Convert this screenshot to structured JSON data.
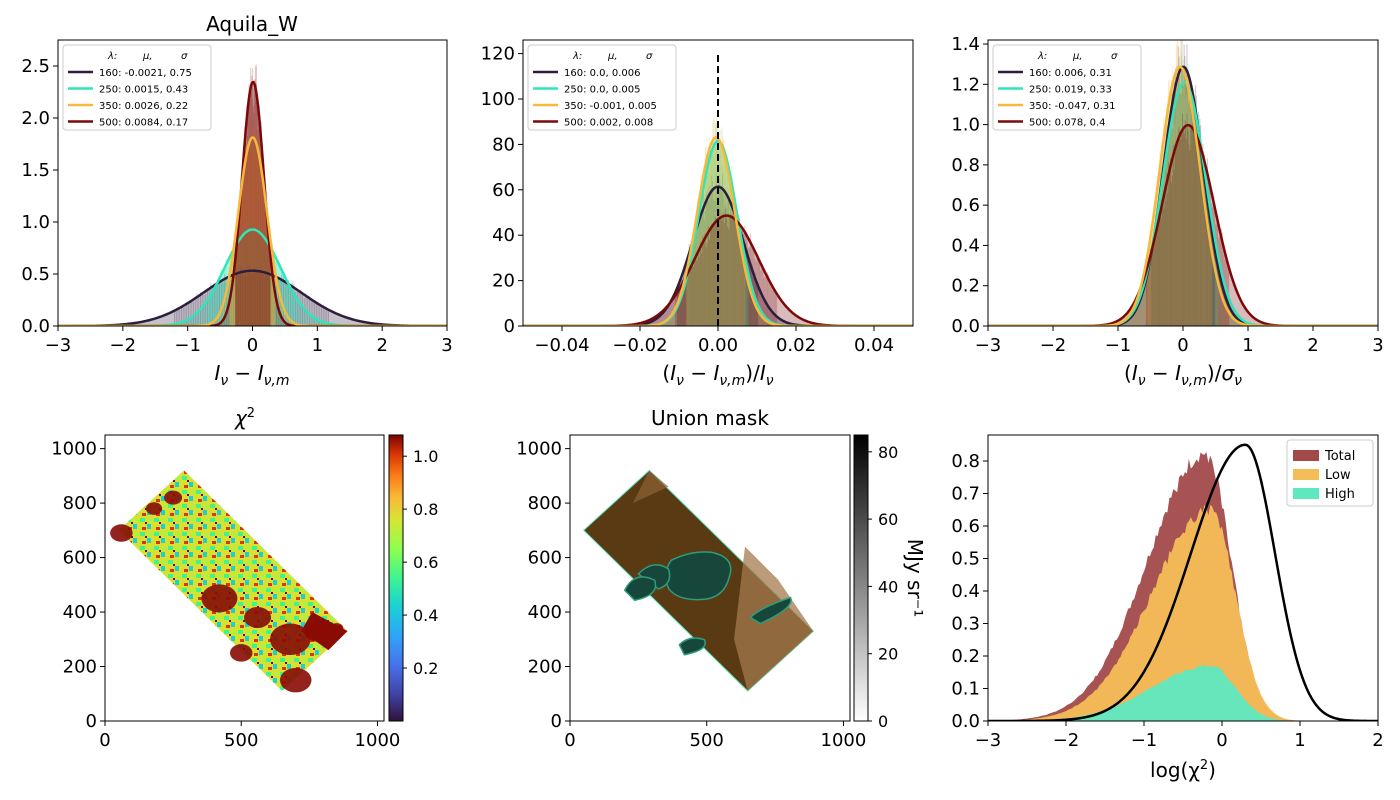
{
  "chart_data": [
    {
      "type": "line",
      "title": "Aquila_W",
      "xlabel": "I_ν − I_ν,m",
      "xlim": [
        -3,
        3
      ],
      "ylim": [
        0,
        2.75
      ],
      "xticks": [
        "−3",
        "−2",
        "−1",
        "0",
        "1",
        "2",
        "3"
      ],
      "yticks": [
        "0.0",
        "0.5",
        "1.0",
        "1.5",
        "2.0",
        "2.5"
      ],
      "legend": {
        "placement": "upper-left",
        "header": [
          "λ:",
          "μ,",
          "σ"
        ],
        "entries": [
          "160: -0.0021,  0.75",
          "250: 0.0015,  0.43",
          "350: 0.0026,  0.22",
          "500: 0.0084,  0.17"
        ]
      },
      "series": [
        {
          "band": 160,
          "mu": -0.0021,
          "sigma": 0.75,
          "color": "#2d1e3e"
        },
        {
          "band": 250,
          "mu": 0.0015,
          "sigma": 0.43,
          "color": "#2ee6b9"
        },
        {
          "band": 350,
          "mu": 0.0026,
          "sigma": 0.22,
          "color": "#f6b93b"
        },
        {
          "band": 500,
          "mu": 0.0084,
          "sigma": 0.17,
          "color": "#7a0a0a"
        }
      ]
    },
    {
      "type": "line",
      "title": "",
      "xlabel": "(I_ν − I_ν,m)/I_ν",
      "xlim": [
        -0.05,
        0.05
      ],
      "ylim": [
        0,
        126
      ],
      "xticks": [
        "−0.04",
        "−0.02",
        "0.00",
        "0.02",
        "0.04"
      ],
      "yticks": [
        "0",
        "20",
        "40",
        "60",
        "80",
        "100",
        "120"
      ],
      "vline": 0,
      "legend": {
        "placement": "upper-left",
        "header": [
          "λ:",
          "μ,",
          "σ"
        ],
        "entries": [
          "160: 0.0,  0.006",
          "250: 0.0,  0.005",
          "350: -0.001,  0.005",
          "500: 0.002,  0.008"
        ]
      },
      "series": [
        {
          "band": 160,
          "mu": 0.0,
          "sigma": 0.0065,
          "color": "#2d1e3e"
        },
        {
          "band": 250,
          "mu": 0.0,
          "sigma": 0.0049,
          "color": "#2ee6b9"
        },
        {
          "band": 350,
          "mu": -0.0005,
          "sigma": 0.0048,
          "color": "#f6b93b"
        },
        {
          "band": 500,
          "mu": 0.0022,
          "sigma": 0.0082,
          "color": "#7a0a0a"
        }
      ]
    },
    {
      "type": "line",
      "title": "",
      "xlabel": "(I_ν − I_ν,m)/σ_ν",
      "xlim": [
        -3,
        3
      ],
      "ylim": [
        0,
        1.42
      ],
      "xticks": [
        "−3",
        "−2",
        "−1",
        "0",
        "1",
        "2",
        "3"
      ],
      "yticks": [
        "0.0",
        "0.2",
        "0.4",
        "0.6",
        "0.8",
        "1.0",
        "1.2",
        "1.4"
      ],
      "legend": {
        "placement": "upper-left",
        "header": [
          "λ:",
          "μ,",
          "σ"
        ],
        "entries": [
          "160: 0.006,  0.31",
          "250: 0.019,  0.33",
          "350: -0.047,  0.31",
          "500: 0.078,  0.4"
        ]
      },
      "series": [
        {
          "band": 160,
          "mu": 0.006,
          "sigma": 0.31,
          "color": "#2d1e3e"
        },
        {
          "band": 250,
          "mu": 0.019,
          "sigma": 0.33,
          "color": "#2ee6b9"
        },
        {
          "band": 350,
          "mu": -0.047,
          "sigma": 0.31,
          "color": "#f6b93b"
        },
        {
          "band": 500,
          "mu": 0.078,
          "sigma": 0.4,
          "color": "#7a0a0a"
        }
      ]
    },
    {
      "type": "heatmap",
      "title": "χ²",
      "xlim": [
        0,
        1024
      ],
      "ylim": [
        0,
        1050
      ],
      "xticks": [
        "0",
        "500",
        "1000"
      ],
      "yticks": [
        "0",
        "200",
        "400",
        "600",
        "800",
        "1000"
      ],
      "colorbar": {
        "range": [
          0.0,
          1.08
        ],
        "ticks": [
          "0.2",
          "0.4",
          "0.6",
          "0.8",
          "1.0"
        ]
      },
      "field_corners": [
        [
          50,
          700
        ],
        [
          290,
          920
        ],
        [
          890,
          330
        ],
        [
          650,
          110
        ]
      ]
    },
    {
      "type": "heatmap",
      "title": "Union mask",
      "xlim": [
        0,
        1024
      ],
      "ylim": [
        0,
        1050
      ],
      "xticks": [
        "0",
        "500",
        "1000"
      ],
      "yticks": [
        "0",
        "200",
        "400",
        "600",
        "800",
        "1000"
      ],
      "colorbar": {
        "range": [
          0,
          85
        ],
        "ticks": [
          "0",
          "20",
          "40",
          "60",
          "80"
        ],
        "label": "MJy sr⁻¹"
      },
      "field_corners": [
        [
          50,
          700
        ],
        [
          290,
          920
        ],
        [
          890,
          330
        ],
        [
          650,
          110
        ]
      ]
    },
    {
      "type": "bar",
      "title": "",
      "xlabel": "log(χ²)",
      "xlim": [
        -3,
        2
      ],
      "ylim": [
        0,
        0.88
      ],
      "xticks": [
        "−3",
        "−2",
        "−1",
        "0",
        "1",
        "2"
      ],
      "yticks": [
        "0.0",
        "0.1",
        "0.2",
        "0.3",
        "0.4",
        "0.5",
        "0.6",
        "0.7",
        "0.8"
      ],
      "legend": {
        "placement": "upper-right",
        "entries": [
          "Total",
          "Low",
          "High"
        ]
      },
      "series": [
        {
          "name": "Total",
          "color": "#a24a4a",
          "peak_x": -0.2,
          "peak_y": 0.82
        },
        {
          "name": "Low",
          "color": "#f5bd57",
          "peak_x": -0.15,
          "peak_y": 0.65
        },
        {
          "name": "High",
          "color": "#5ee8c0",
          "peak_x": -0.15,
          "peak_y": 0.17
        }
      ],
      "curve": {
        "color": "#000000",
        "peak_x": 0.3,
        "peak_y": 0.85
      }
    }
  ]
}
